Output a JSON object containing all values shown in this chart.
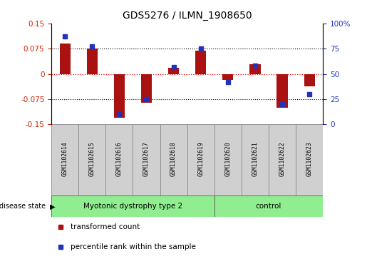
{
  "title": "GDS5276 / ILMN_1908650",
  "samples": [
    "GSM1102614",
    "GSM1102615",
    "GSM1102616",
    "GSM1102617",
    "GSM1102618",
    "GSM1102619",
    "GSM1102620",
    "GSM1102621",
    "GSM1102622",
    "GSM1102623"
  ],
  "red_bars": [
    0.09,
    0.075,
    -0.13,
    -0.085,
    0.018,
    0.068,
    -0.018,
    0.028,
    -0.1,
    -0.038
  ],
  "blue_dots": [
    87,
    77,
    10,
    25,
    57,
    75,
    42,
    58,
    20,
    30
  ],
  "ylim_left": [
    -0.15,
    0.15
  ],
  "ylim_right": [
    0,
    100
  ],
  "yticks_left": [
    -0.15,
    -0.075,
    0,
    0.075,
    0.15
  ],
  "yticks_right": [
    0,
    25,
    50,
    75,
    100
  ],
  "hlines": [
    0.075,
    0,
    -0.075
  ],
  "group1_label": "Myotonic dystrophy type 2",
  "group1_count": 6,
  "group2_label": "control",
  "group2_count": 4,
  "disease_state_label": "disease state",
  "legend_red": "transformed count",
  "legend_blue": "percentile rank within the sample",
  "bar_color": "#aa1111",
  "dot_color": "#2233bb",
  "group_color": "#90ee90",
  "sample_box_color": "#d0d0d0",
  "sample_box_edge": "#888888",
  "left_tick_color": "#cc2200",
  "right_tick_color": "#2233bb",
  "bar_width": 0.4
}
